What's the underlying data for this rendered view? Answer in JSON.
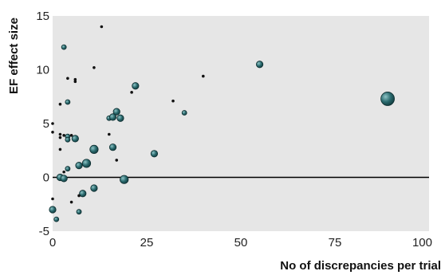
{
  "chart_data": {
    "type": "scatter",
    "title": "",
    "xlabel": "No of discrepancies per trial",
    "ylabel": "EF effect size",
    "xlim": [
      0,
      100
    ],
    "ylim": [
      -5,
      15
    ],
    "xticks": [
      "0",
      "25",
      "50",
      "75",
      "100"
    ],
    "yticks": [
      "-5",
      "0",
      "5",
      "10",
      "15"
    ],
    "grid": false,
    "reference_line_y": 0,
    "colors": {
      "panel": "#e6e6e6",
      "marker": "#2a6a6e",
      "marker_edge": "#0e2e30",
      "zero_line": "#000000"
    },
    "points": [
      {
        "x": 13,
        "y": 14.0,
        "s": 1
      },
      {
        "x": 3,
        "y": 12.1,
        "s": 2
      },
      {
        "x": 11,
        "y": 10.2,
        "s": 1
      },
      {
        "x": 4,
        "y": 9.2,
        "s": 1
      },
      {
        "x": 6,
        "y": 9.1,
        "s": 1
      },
      {
        "x": 6,
        "y": 8.9,
        "s": 1
      },
      {
        "x": 55,
        "y": 10.5,
        "s": 3
      },
      {
        "x": 40,
        "y": 9.4,
        "s": 1
      },
      {
        "x": 22,
        "y": 8.5,
        "s": 3
      },
      {
        "x": 21,
        "y": 7.9,
        "s": 1
      },
      {
        "x": 89,
        "y": 7.3,
        "s": 6
      },
      {
        "x": 32,
        "y": 7.1,
        "s": 1
      },
      {
        "x": 4,
        "y": 7.0,
        "s": 2
      },
      {
        "x": 2,
        "y": 6.8,
        "s": 1
      },
      {
        "x": 17,
        "y": 6.1,
        "s": 3
      },
      {
        "x": 35,
        "y": 6.0,
        "s": 2
      },
      {
        "x": 15,
        "y": 5.5,
        "s": 2
      },
      {
        "x": 16,
        "y": 5.6,
        "s": 3
      },
      {
        "x": 18,
        "y": 5.5,
        "s": 3
      },
      {
        "x": 0,
        "y": 5.0,
        "s": 1
      },
      {
        "x": 0,
        "y": 4.2,
        "s": 1
      },
      {
        "x": 2,
        "y": 4.0,
        "s": 1
      },
      {
        "x": 3,
        "y": 3.9,
        "s": 1
      },
      {
        "x": 4,
        "y": 3.8,
        "s": 2
      },
      {
        "x": 5,
        "y": 3.9,
        "s": 1
      },
      {
        "x": 2,
        "y": 3.7,
        "s": 1
      },
      {
        "x": 4,
        "y": 3.5,
        "s": 2
      },
      {
        "x": 6,
        "y": 3.6,
        "s": 3
      },
      {
        "x": 15,
        "y": 4.0,
        "s": 1
      },
      {
        "x": 11,
        "y": 2.6,
        "s": 4
      },
      {
        "x": 16,
        "y": 2.8,
        "s": 3
      },
      {
        "x": 2,
        "y": 2.6,
        "s": 1
      },
      {
        "x": 27,
        "y": 2.2,
        "s": 3
      },
      {
        "x": 17,
        "y": 1.6,
        "s": 1
      },
      {
        "x": 9,
        "y": 1.3,
        "s": 4
      },
      {
        "x": 7,
        "y": 1.1,
        "s": 3
      },
      {
        "x": 4,
        "y": 0.8,
        "s": 2
      },
      {
        "x": 3,
        "y": 0.5,
        "s": 1
      },
      {
        "x": 2,
        "y": 0.0,
        "s": 3
      },
      {
        "x": 3,
        "y": -0.1,
        "s": 3
      },
      {
        "x": 19,
        "y": -0.2,
        "s": 4
      },
      {
        "x": 11,
        "y": -1.0,
        "s": 3
      },
      {
        "x": 8,
        "y": -1.5,
        "s": 3
      },
      {
        "x": 7,
        "y": -1.7,
        "s": 1
      },
      {
        "x": 5,
        "y": -2.3,
        "s": 1
      },
      {
        "x": 0,
        "y": -2.0,
        "s": 1
      },
      {
        "x": 0,
        "y": -3.0,
        "s": 3
      },
      {
        "x": 7,
        "y": -3.2,
        "s": 2
      },
      {
        "x": 1,
        "y": -3.9,
        "s": 2
      }
    ]
  }
}
